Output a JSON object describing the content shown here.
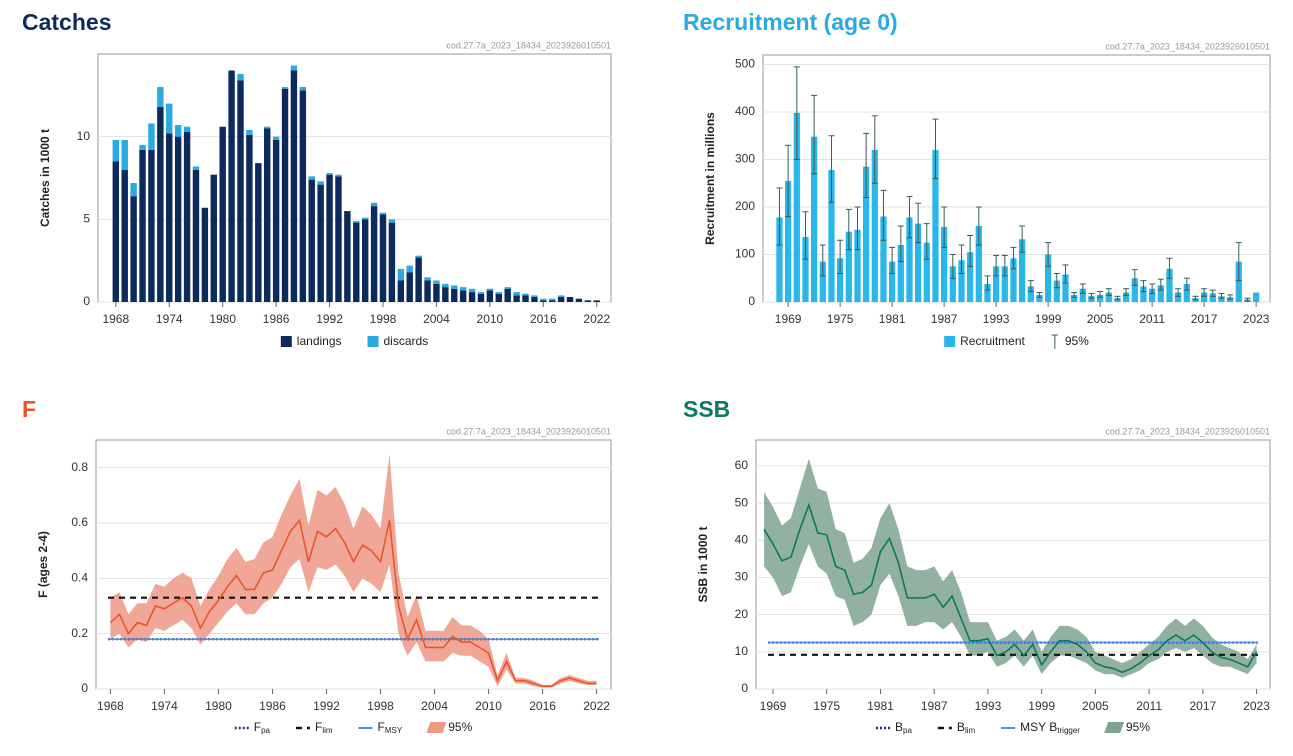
{
  "chart_data": [
    {
      "type": "bar",
      "title": "Catches",
      "title_color": "#0d2a5c",
      "source": "cod.27.7a_2023_18434_2023926010501",
      "ylabel": "Catches in 1000 t",
      "x": [
        1968,
        1969,
        1970,
        1971,
        1972,
        1973,
        1974,
        1975,
        1976,
        1977,
        1978,
        1979,
        1980,
        1981,
        1982,
        1983,
        1984,
        1985,
        1986,
        1987,
        1988,
        1989,
        1990,
        1991,
        1992,
        1993,
        1994,
        1995,
        1996,
        1997,
        1998,
        1999,
        2000,
        2001,
        2002,
        2003,
        2004,
        2005,
        2006,
        2007,
        2008,
        2009,
        2010,
        2011,
        2012,
        2013,
        2014,
        2015,
        2016,
        2017,
        2018,
        2019,
        2020,
        2021,
        2022
      ],
      "series": [
        {
          "name": "landings",
          "color": "#0d2a5c",
          "values": [
            8.5,
            8.0,
            6.4,
            9.2,
            9.2,
            11.8,
            10.2,
            10.0,
            10.3,
            8.0,
            5.7,
            7.7,
            10.6,
            14.0,
            13.4,
            10.1,
            8.4,
            10.5,
            9.8,
            12.9,
            14.0,
            12.8,
            7.4,
            7.1,
            7.7,
            7.6,
            5.5,
            4.8,
            5.0,
            5.8,
            5.3,
            4.8,
            1.3,
            1.8,
            2.7,
            1.3,
            1.1,
            0.9,
            0.8,
            0.7,
            0.6,
            0.5,
            0.7,
            0.5,
            0.8,
            0.4,
            0.4,
            0.3,
            0.1,
            0.1,
            0.3,
            0.3,
            0.2,
            0.1,
            0.1
          ]
        },
        {
          "name": "discards",
          "color": "#29abe2",
          "values": [
            1.3,
            1.8,
            0.8,
            0.3,
            1.6,
            1.2,
            1.8,
            0.7,
            0.3,
            0.2,
            0,
            0,
            0,
            0,
            0.4,
            0.3,
            0,
            0.1,
            0.2,
            0.1,
            0.3,
            0.2,
            0.2,
            0.2,
            0.1,
            0.1,
            0,
            0.1,
            0.1,
            0.2,
            0.1,
            0.2,
            0.7,
            0.4,
            0.1,
            0.2,
            0.2,
            0.2,
            0.2,
            0.2,
            0.2,
            0.1,
            0.1,
            0.1,
            0.1,
            0.2,
            0.1,
            0.1,
            0.1,
            0.1,
            0.1,
            0,
            0,
            0,
            0
          ]
        }
      ],
      "xlim": [
        1966,
        2023.6
      ],
      "xticks": [
        1968,
        1974,
        1980,
        1986,
        1992,
        1998,
        2004,
        2010,
        2016,
        2022
      ],
      "ylim": [
        0,
        15
      ],
      "yticks": [
        0,
        5,
        10
      ],
      "grid": true
    },
    {
      "type": "bar",
      "title": "Recruitment (age 0)",
      "title_color": "#29abe2",
      "source": "cod.27.7a_2023_18434_2023926010501",
      "ylabel": "Recruitment in millions",
      "x": [
        1968,
        1969,
        1970,
        1971,
        1972,
        1973,
        1974,
        1975,
        1976,
        1977,
        1978,
        1979,
        1980,
        1981,
        1982,
        1983,
        1984,
        1985,
        1986,
        1987,
        1988,
        1989,
        1990,
        1991,
        1992,
        1993,
        1994,
        1995,
        1996,
        1997,
        1998,
        1999,
        2000,
        2001,
        2002,
        2003,
        2004,
        2005,
        2006,
        2007,
        2008,
        2009,
        2010,
        2011,
        2012,
        2013,
        2014,
        2015,
        2016,
        2017,
        2018,
        2019,
        2020,
        2021,
        2022,
        2023
      ],
      "series": [
        {
          "name": "Recruitment",
          "color": "#29b6e8",
          "values": [
            178,
            255,
            398,
            137,
            348,
            85,
            278,
            92,
            148,
            152,
            285,
            320,
            180,
            85,
            120,
            178,
            165,
            125,
            320,
            158,
            75,
            88,
            105,
            160,
            38,
            75,
            75,
            92,
            132,
            33,
            15,
            100,
            45,
            58,
            15,
            28,
            13,
            15,
            20,
            8,
            20,
            50,
            33,
            28,
            35,
            70,
            20,
            38,
            8,
            20,
            18,
            12,
            10,
            85,
            5,
            20
          ],
          "lower": [
            120,
            180,
            300,
            90,
            270,
            55,
            210,
            60,
            110,
            110,
            220,
            250,
            130,
            60,
            85,
            135,
            125,
            90,
            260,
            115,
            50,
            60,
            75,
            120,
            25,
            55,
            55,
            70,
            105,
            22,
            10,
            75,
            30,
            40,
            10,
            18,
            8,
            10,
            14,
            5,
            14,
            35,
            22,
            18,
            25,
            50,
            12,
            25,
            5,
            12,
            12,
            8,
            6,
            45,
            2,
            null
          ],
          "upper": [
            240,
            330,
            495,
            190,
            435,
            120,
            350,
            130,
            195,
            200,
            355,
            392,
            235,
            115,
            160,
            222,
            208,
            165,
            385,
            200,
            100,
            120,
            140,
            200,
            55,
            98,
            98,
            115,
            160,
            45,
            20,
            125,
            60,
            78,
            20,
            38,
            18,
            22,
            28,
            12,
            28,
            68,
            45,
            38,
            48,
            92,
            28,
            50,
            12,
            28,
            25,
            18,
            15,
            125,
            8,
            null
          ]
        }
      ],
      "interval": {
        "name": "95%",
        "color": "#3d5a5a"
      },
      "xlim": [
        1966.1,
        2024.6
      ],
      "xticks": [
        1969,
        1975,
        1981,
        1987,
        1993,
        1999,
        2005,
        2011,
        2017,
        2023
      ],
      "ylim": [
        0,
        520
      ],
      "yticks": [
        0,
        100,
        200,
        300,
        400,
        500
      ],
      "grid": true
    },
    {
      "type": "line",
      "title": "F",
      "title_color": "#e8562a",
      "source": "cod.27.7a_2023_18434_2023926010501",
      "ylabel": "F (ages 2-4)",
      "x": [
        1968,
        1969,
        1970,
        1971,
        1972,
        1973,
        1974,
        1975,
        1976,
        1977,
        1978,
        1979,
        1980,
        1981,
        1982,
        1983,
        1984,
        1985,
        1986,
        1987,
        1988,
        1989,
        1990,
        1991,
        1992,
        1993,
        1994,
        1995,
        1996,
        1997,
        1998,
        1999,
        2000,
        2001,
        2002,
        2003,
        2004,
        2005,
        2006,
        2007,
        2008,
        2009,
        2010,
        2011,
        2012,
        2013,
        2014,
        2015,
        2016,
        2017,
        2018,
        2019,
        2020,
        2021,
        2022
      ],
      "values": [
        0.24,
        0.27,
        0.2,
        0.24,
        0.23,
        0.3,
        0.29,
        0.31,
        0.33,
        0.3,
        0.22,
        0.28,
        0.32,
        0.37,
        0.41,
        0.36,
        0.36,
        0.42,
        0.43,
        0.5,
        0.57,
        0.61,
        0.46,
        0.57,
        0.55,
        0.58,
        0.53,
        0.46,
        0.52,
        0.5,
        0.46,
        0.61,
        0.3,
        0.18,
        0.25,
        0.15,
        0.15,
        0.15,
        0.19,
        0.17,
        0.17,
        0.15,
        0.13,
        0.03,
        0.1,
        0.03,
        0.03,
        0.02,
        0.01,
        0.01,
        0.03,
        0.04,
        0.03,
        0.02,
        0.02
      ],
      "lower": [
        0.18,
        0.2,
        0.15,
        0.18,
        0.17,
        0.22,
        0.21,
        0.23,
        0.25,
        0.22,
        0.16,
        0.2,
        0.24,
        0.28,
        0.31,
        0.27,
        0.27,
        0.31,
        0.33,
        0.38,
        0.44,
        0.47,
        0.35,
        0.44,
        0.43,
        0.45,
        0.41,
        0.35,
        0.4,
        0.38,
        0.35,
        0.45,
        0.2,
        0.12,
        0.17,
        0.1,
        0.1,
        0.1,
        0.13,
        0.12,
        0.12,
        0.1,
        0.08,
        0.01,
        0.07,
        0.02,
        0.02,
        0.01,
        0.005,
        0.005,
        0.02,
        0.03,
        0.02,
        0.015,
        0.015
      ],
      "upper": [
        0.33,
        0.35,
        0.27,
        0.31,
        0.31,
        0.38,
        0.37,
        0.4,
        0.42,
        0.4,
        0.3,
        0.36,
        0.41,
        0.47,
        0.51,
        0.46,
        0.47,
        0.53,
        0.55,
        0.63,
        0.7,
        0.76,
        0.59,
        0.72,
        0.7,
        0.73,
        0.67,
        0.58,
        0.66,
        0.63,
        0.58,
        0.85,
        0.42,
        0.26,
        0.34,
        0.21,
        0.21,
        0.21,
        0.26,
        0.23,
        0.23,
        0.21,
        0.18,
        0.05,
        0.13,
        0.04,
        0.04,
        0.03,
        0.015,
        0.015,
        0.04,
        0.05,
        0.04,
        0.03,
        0.03
      ],
      "color": "#e8562a",
      "band": {
        "name": "95%",
        "color": "#ee9885"
      },
      "reference_lines": [
        {
          "name": "F",
          "subscript": "pa",
          "value": 0.18,
          "style": "dotted",
          "color": "#1a2e7a"
        },
        {
          "name": "F",
          "subscript": "lim",
          "value": 0.33,
          "style": "dashed",
          "color": "#111111"
        },
        {
          "name": "F",
          "subscript": "MSY",
          "value": 0.18,
          "style": "solid",
          "color": "#4a90e2"
        }
      ],
      "xlim": [
        1966.4,
        2023.6
      ],
      "xticks": [
        1968,
        1974,
        1980,
        1986,
        1992,
        1998,
        2004,
        2010,
        2016,
        2022
      ],
      "ylim": [
        0,
        0.9
      ],
      "yticks": [
        0,
        0.2,
        0.4,
        0.6,
        0.8
      ],
      "grid": true
    },
    {
      "type": "line",
      "title": "SSB",
      "title_color": "#0c7a60",
      "source": "cod.27.7a_2023_18434_2023926010501",
      "ylabel": "SSB in 1000 t",
      "x": [
        1968,
        1969,
        1970,
        1971,
        1972,
        1973,
        1974,
        1975,
        1976,
        1977,
        1978,
        1979,
        1980,
        1981,
        1982,
        1983,
        1984,
        1985,
        1986,
        1987,
        1988,
        1989,
        1990,
        1991,
        1992,
        1993,
        1994,
        1995,
        1996,
        1997,
        1998,
        1999,
        2000,
        2001,
        2002,
        2003,
        2004,
        2005,
        2006,
        2007,
        2008,
        2009,
        2010,
        2011,
        2012,
        2013,
        2014,
        2015,
        2016,
        2017,
        2018,
        2019,
        2020,
        2021,
        2022,
        2023
      ],
      "values": [
        43,
        39,
        34.5,
        35.5,
        43,
        49.5,
        42,
        41.5,
        33,
        32,
        25.5,
        26,
        28,
        37,
        40.5,
        34,
        24.5,
        24.5,
        24.5,
        25.5,
        22,
        25,
        19,
        13,
        13,
        13.5,
        9,
        10,
        12,
        9,
        12,
        6.5,
        10,
        13,
        13,
        12,
        10,
        7,
        6,
        5.5,
        4.5,
        5.5,
        7,
        9,
        10.5,
        13,
        14.5,
        13,
        14.5,
        12.5,
        10,
        8.5,
        8,
        7,
        6,
        10
      ],
      "lower": [
        33,
        30,
        25,
        26,
        33,
        39,
        33,
        31,
        25,
        24,
        17,
        18,
        20,
        28,
        31,
        25,
        17,
        17,
        18,
        18,
        16,
        18,
        14,
        9,
        9,
        10,
        6,
        7,
        9,
        6,
        9,
        4,
        7,
        9,
        9,
        8,
        7,
        5,
        4,
        4,
        3,
        4,
        5,
        7,
        8,
        10,
        11,
        10,
        11,
        9,
        7,
        6,
        6,
        5,
        4,
        7
      ],
      "upper": [
        53,
        49,
        44,
        46,
        54,
        62,
        54,
        53,
        43,
        42,
        34,
        35,
        38,
        46,
        50,
        43,
        33,
        32,
        32,
        33,
        29,
        32,
        26,
        18,
        18,
        18,
        13,
        14,
        16,
        13,
        16,
        10,
        14,
        17,
        17,
        16,
        14,
        10,
        9,
        8,
        7,
        8,
        10,
        12,
        14,
        17,
        19,
        17,
        19,
        17,
        14,
        12,
        11,
        10,
        8,
        12
      ],
      "color": "#0c7a60",
      "band": {
        "name": "95%",
        "color": "#7fa391"
      },
      "reference_lines": [
        {
          "name": "B",
          "subscript": "pa",
          "value": 12.5,
          "style": "dotted",
          "color": "#1a2e7a"
        },
        {
          "name": "B",
          "subscript": "lim",
          "value": 9.2,
          "style": "dashed",
          "color": "#111111"
        },
        {
          "name": "MSY B",
          "subscript": "trigger",
          "value": 12.5,
          "style": "solid",
          "color": "#4a90e2"
        }
      ],
      "xlim": [
        1967.1,
        2024.5
      ],
      "xticks": [
        1969,
        1975,
        1981,
        1987,
        1993,
        1999,
        2005,
        2011,
        2017,
        2023
      ],
      "ylim": [
        0,
        67
      ],
      "yticks": [
        0,
        10,
        20,
        30,
        40,
        50,
        60
      ],
      "grid": true
    }
  ]
}
